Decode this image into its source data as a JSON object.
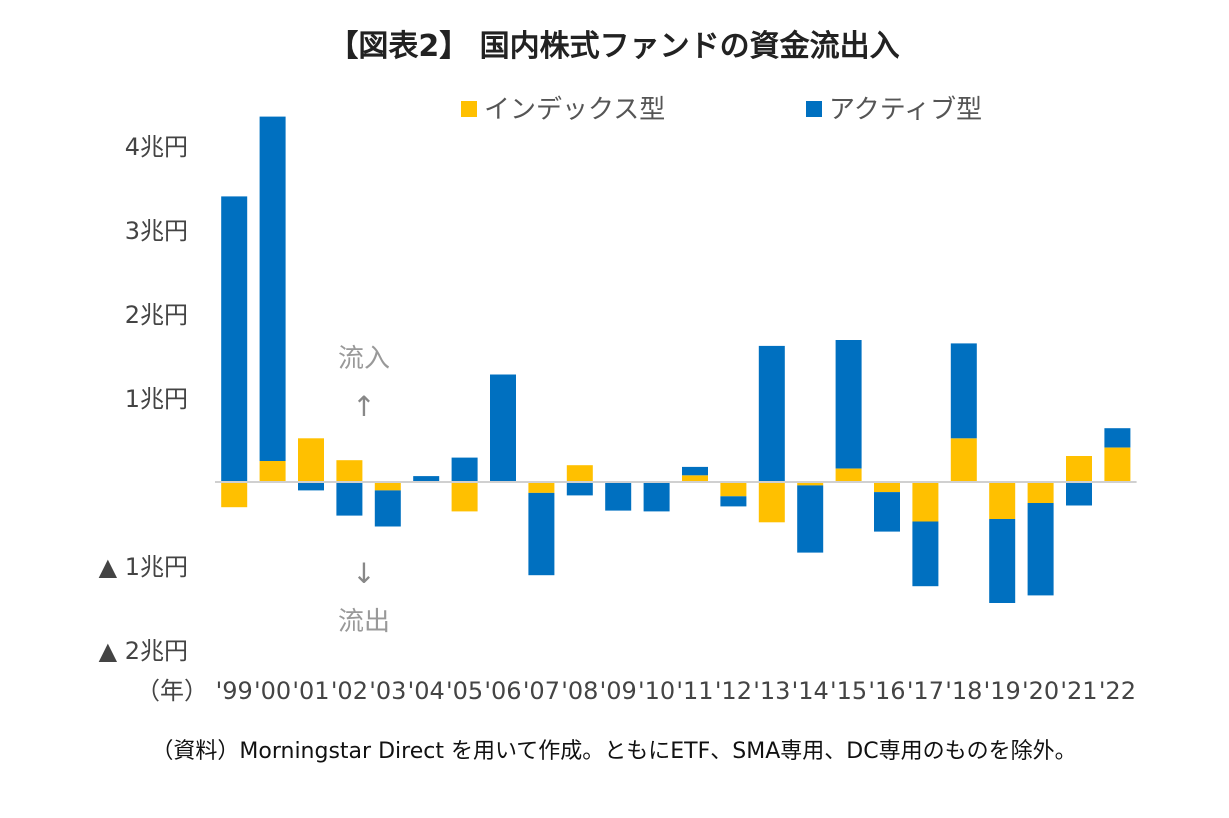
{
  "chart_data": {
    "type": "bar",
    "stacked": true,
    "title": "【図表2】 国内株式ファンドの資金流出入",
    "ylim": [
      -2,
      4.35
    ],
    "yticks": [
      {
        "value": 4,
        "label": "4兆円"
      },
      {
        "value": 3,
        "label": "3兆円"
      },
      {
        "value": 2,
        "label": "2兆円"
      },
      {
        "value": 1,
        "label": "1兆円"
      },
      {
        "value": -1,
        "label": "▲ 1兆円"
      },
      {
        "value": -2,
        "label": "▲ 2兆円"
      }
    ],
    "xlabel": "（年）",
    "categories": [
      "'99",
      "'00",
      "'01",
      "'02",
      "'03",
      "'04",
      "'05",
      "'06",
      "'07",
      "'08",
      "'09",
      "'10",
      "'11",
      "'12",
      "'13",
      "'14",
      "'15",
      "'16",
      "'17",
      "'18",
      "'19",
      "'20",
      "'21",
      "'22"
    ],
    "series": [
      {
        "name": "インデックス型",
        "color": "#FFC000",
        "values": [
          -0.3,
          0.25,
          0.52,
          0.26,
          -0.1,
          0.0,
          -0.35,
          0.0,
          -0.13,
          0.2,
          0.0,
          0.0,
          0.08,
          -0.17,
          -0.48,
          -0.04,
          0.16,
          -0.12,
          -0.47,
          0.52,
          -0.44,
          -0.25,
          0.31,
          0.41
        ]
      },
      {
        "name": "アクティブ型",
        "color": "#0070C0",
        "values": [
          3.4,
          4.1,
          -0.1,
          -0.4,
          -0.43,
          0.07,
          0.29,
          1.28,
          -0.98,
          -0.16,
          -0.34,
          -0.35,
          0.1,
          -0.12,
          1.62,
          -0.8,
          1.53,
          -0.47,
          -0.77,
          1.13,
          -1.0,
          -1.1,
          -0.28,
          0.23
        ]
      }
    ],
    "legend": "top-center",
    "annotations": {
      "inflow": "流入",
      "outflow": "流出",
      "up_arrow": "↑",
      "down_arrow": "↓"
    }
  },
  "source_note": "（資料）Morningstar Direct を用いて作成。ともにETF、SMA専用、DC専用のものを除外。"
}
